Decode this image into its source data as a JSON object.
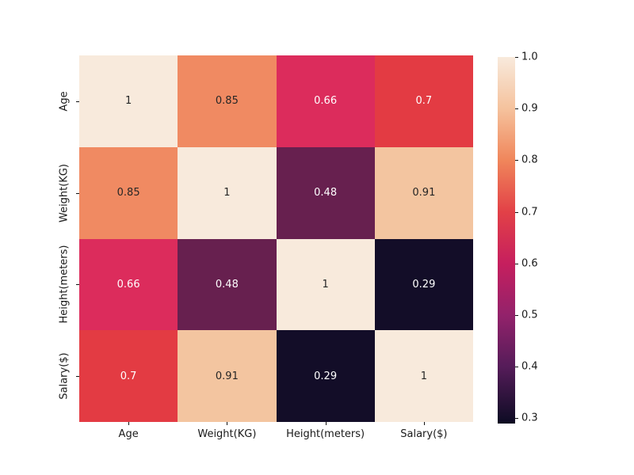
{
  "figure": {
    "background_color": "#ffffff",
    "tick_color": "#111111",
    "tick_label_color": "#1a1a1a"
  },
  "chart_data": {
    "type": "heatmap",
    "title": "",
    "xlabel": "",
    "ylabel": "",
    "colormap": "rocket",
    "categories": [
      "Age",
      "Weight(KG)",
      "Height(meters)",
      "Salary($)"
    ],
    "matrix": [
      [
        1,
        0.85,
        0.66,
        0.7
      ],
      [
        0.85,
        1,
        0.48,
        0.91
      ],
      [
        0.66,
        0.48,
        1,
        0.29
      ],
      [
        0.7,
        0.91,
        0.29,
        1
      ]
    ],
    "cell_labels": [
      [
        "1",
        "0.85",
        "0.66",
        "0.7"
      ],
      [
        "0.85",
        "1",
        "0.48",
        "0.91"
      ],
      [
        "0.66",
        "0.48",
        "1",
        "0.29"
      ],
      [
        "0.7",
        "0.91",
        "0.29",
        "1"
      ]
    ],
    "cell_colors": [
      [
        "#f8eadc",
        "#f08a62",
        "#dc2c5c",
        "#e33b43"
      ],
      [
        "#f08a62",
        "#f8eadc",
        "#67204f",
        "#f3c5a0"
      ],
      [
        "#dc2c5c",
        "#67204f",
        "#f8eadc",
        "#130d28"
      ],
      [
        "#e33b43",
        "#f3c5a0",
        "#130d28",
        "#f8eadc"
      ]
    ],
    "cell_text_colors": [
      [
        "#262626",
        "#262626",
        "#ffffff",
        "#ffffff"
      ],
      [
        "#262626",
        "#262626",
        "#ffffff",
        "#262626"
      ],
      [
        "#ffffff",
        "#ffffff",
        "#262626",
        "#ffffff"
      ],
      [
        "#ffffff",
        "#262626",
        "#ffffff",
        "#262626"
      ]
    ],
    "colorbar": {
      "min": 0.29,
      "max": 1.0,
      "tick_labels": [
        "1.0",
        "0.9",
        "0.8",
        "0.7",
        "0.6",
        "0.5",
        "0.4",
        "0.3"
      ],
      "tick_values": [
        1.0,
        0.9,
        0.8,
        0.7,
        0.6,
        0.5,
        0.4,
        0.3
      ],
      "gradient_stops": [
        {
          "color": "#f8eadc",
          "pos": 0
        },
        {
          "color": "#f5c29d",
          "pos": 14.08
        },
        {
          "color": "#f0865b",
          "pos": 28.17
        },
        {
          "color": "#e24147",
          "pos": 42.25
        },
        {
          "color": "#c61f5e",
          "pos": 56.34
        },
        {
          "color": "#93226b",
          "pos": 70.42
        },
        {
          "color": "#551c59",
          "pos": 84.51
        },
        {
          "color": "#130d28",
          "pos": 98.59
        },
        {
          "color": "#0a0820",
          "pos": 100
        }
      ]
    },
    "legend_position": "right-colorbar",
    "grid": false
  }
}
